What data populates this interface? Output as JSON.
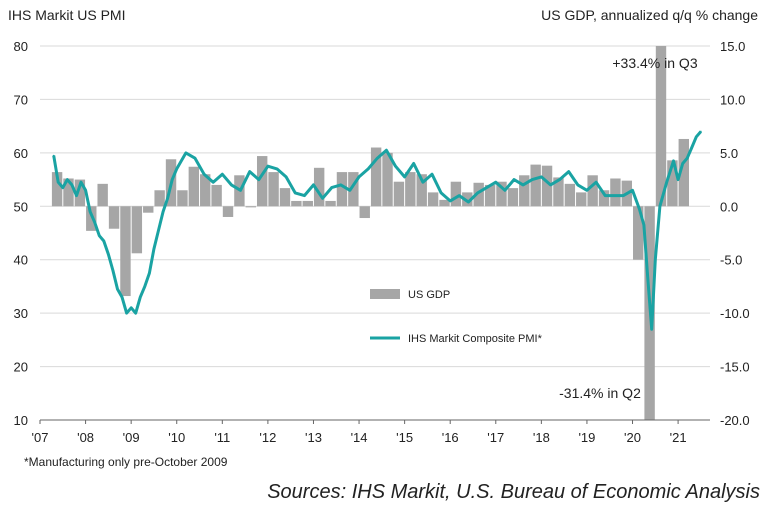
{
  "chart_data": {
    "type": "bar+line",
    "left_axis_title": "IHS Markit US PMI",
    "right_axis_title": "US GDP, annualized q/q % change",
    "left_ylim": [
      10,
      80
    ],
    "left_ticks": [
      "10",
      "20",
      "30",
      "40",
      "50",
      "60",
      "70",
      "80"
    ],
    "right_ylim": [
      -20,
      15
    ],
    "right_ticks": [
      "-20.0",
      "-15.0",
      "-10.0",
      "-5.0",
      "0.0",
      "5.0",
      "10.0",
      "15.0"
    ],
    "x_range": [
      2007,
      2021.7
    ],
    "x_ticks": [
      "'07",
      "'08",
      "'09",
      "'10",
      "'11",
      "'12",
      "'13",
      "'14",
      "'15",
      "'16",
      "'17",
      "'18",
      "'19",
      "'20",
      "'21"
    ],
    "grid": "horizontal",
    "legend_placement": "center-right",
    "colors": {
      "gdp_bars": "#a6a6a6",
      "pmi_line": "#1aa3a3",
      "grid": "#d9d9d9"
    },
    "series": [
      {
        "name": "US GDP",
        "kind": "bar",
        "axis": "right",
        "x": [
          2007.375,
          2007.625,
          2007.875,
          2008.125,
          2008.375,
          2008.625,
          2008.875,
          2009.125,
          2009.375,
          2009.625,
          2009.875,
          2010.125,
          2010.375,
          2010.625,
          2010.875,
          2011.125,
          2011.375,
          2011.625,
          2011.875,
          2012.125,
          2012.375,
          2012.625,
          2012.875,
          2013.125,
          2013.375,
          2013.625,
          2013.875,
          2014.125,
          2014.375,
          2014.625,
          2014.875,
          2015.125,
          2015.375,
          2015.625,
          2015.875,
          2016.125,
          2016.375,
          2016.625,
          2016.875,
          2017.125,
          2017.375,
          2017.625,
          2017.875,
          2018.125,
          2018.375,
          2018.625,
          2018.875,
          2019.125,
          2019.375,
          2019.625,
          2019.875,
          2020.125,
          2020.375,
          2020.625,
          2020.875,
          2021.125
        ],
        "values": [
          3.2,
          2.6,
          2.5,
          -2.3,
          2.1,
          -2.1,
          -8.4,
          -4.4,
          -0.6,
          1.5,
          4.4,
          1.5,
          3.7,
          3.0,
          2.0,
          -1.0,
          2.9,
          -0.1,
          4.7,
          3.2,
          1.7,
          0.5,
          0.5,
          3.6,
          0.5,
          3.2,
          3.2,
          -1.1,
          5.5,
          5.0,
          2.3,
          3.2,
          3.0,
          1.3,
          0.6,
          2.3,
          1.3,
          2.2,
          2.0,
          2.3,
          1.7,
          2.9,
          3.9,
          3.8,
          2.7,
          2.1,
          1.3,
          2.9,
          1.5,
          2.6,
          2.4,
          -5.0,
          -31.4,
          33.4,
          4.3,
          6.3
        ]
      },
      {
        "name": "IHS Markit Composite PMI*",
        "kind": "line",
        "axis": "left",
        "x": [
          2007.3,
          2007.4,
          2007.5,
          2007.6,
          2007.7,
          2007.8,
          2007.9,
          2008.0,
          2008.1,
          2008.2,
          2008.3,
          2008.4,
          2008.5,
          2008.6,
          2008.7,
          2008.8,
          2008.9,
          2009.0,
          2009.1,
          2009.2,
          2009.3,
          2009.4,
          2009.5,
          2009.6,
          2009.7,
          2009.8,
          2009.9,
          2010.0,
          2010.2,
          2010.4,
          2010.6,
          2010.8,
          2011.0,
          2011.2,
          2011.4,
          2011.6,
          2011.8,
          2012.0,
          2012.2,
          2012.4,
          2012.6,
          2012.8,
          2013.0,
          2013.2,
          2013.4,
          2013.6,
          2013.8,
          2014.0,
          2014.2,
          2014.4,
          2014.6,
          2014.8,
          2015.0,
          2015.2,
          2015.4,
          2015.6,
          2015.8,
          2016.0,
          2016.2,
          2016.4,
          2016.6,
          2016.8,
          2017.0,
          2017.2,
          2017.4,
          2017.6,
          2017.8,
          2018.0,
          2018.2,
          2018.4,
          2018.6,
          2018.8,
          2019.0,
          2019.2,
          2019.4,
          2019.6,
          2019.8,
          2020.0,
          2020.15,
          2020.25,
          2020.33,
          2020.42,
          2020.5,
          2020.6,
          2020.75,
          2020.9,
          2021.0,
          2021.1,
          2021.2,
          2021.3,
          2021.4,
          2021.5
        ],
        "values": [
          59.5,
          54.5,
          53.5,
          55.0,
          54.0,
          52.0,
          54.5,
          53.0,
          49.0,
          47.0,
          44.5,
          43.5,
          41.0,
          38.0,
          34.5,
          33.0,
          30.0,
          31.0,
          30.0,
          33.0,
          35.0,
          37.5,
          42.0,
          45.5,
          49.0,
          51.5,
          55.0,
          57.0,
          60.0,
          59.0,
          56.0,
          54.5,
          56.0,
          54.0,
          53.0,
          56.5,
          55.0,
          57.5,
          57.0,
          55.5,
          52.5,
          52.0,
          54.0,
          51.5,
          53.5,
          54.0,
          53.0,
          55.5,
          57.0,
          59.0,
          60.5,
          57.5,
          55.5,
          58.0,
          54.5,
          56.0,
          52.5,
          51.0,
          52.0,
          50.8,
          52.5,
          53.5,
          54.5,
          53.0,
          55.0,
          54.0,
          55.0,
          55.5,
          54.0,
          55.0,
          56.5,
          54.0,
          53.0,
          54.5,
          52.0,
          52.0,
          52.0,
          53.0,
          49.5,
          46.5,
          37.0,
          27.0,
          40.0,
          50.0,
          54.5,
          58.5,
          55.0,
          58.0,
          59.0,
          61.0,
          63.0,
          64.0
        ]
      }
    ],
    "annotations": [
      "+33.4% in Q3",
      "-31.4% in Q2"
    ],
    "footnote": "*Manufacturing only pre-October 2009",
    "source": "Sources: IHS Markit, U.S. Bureau of Economic Analysis"
  }
}
